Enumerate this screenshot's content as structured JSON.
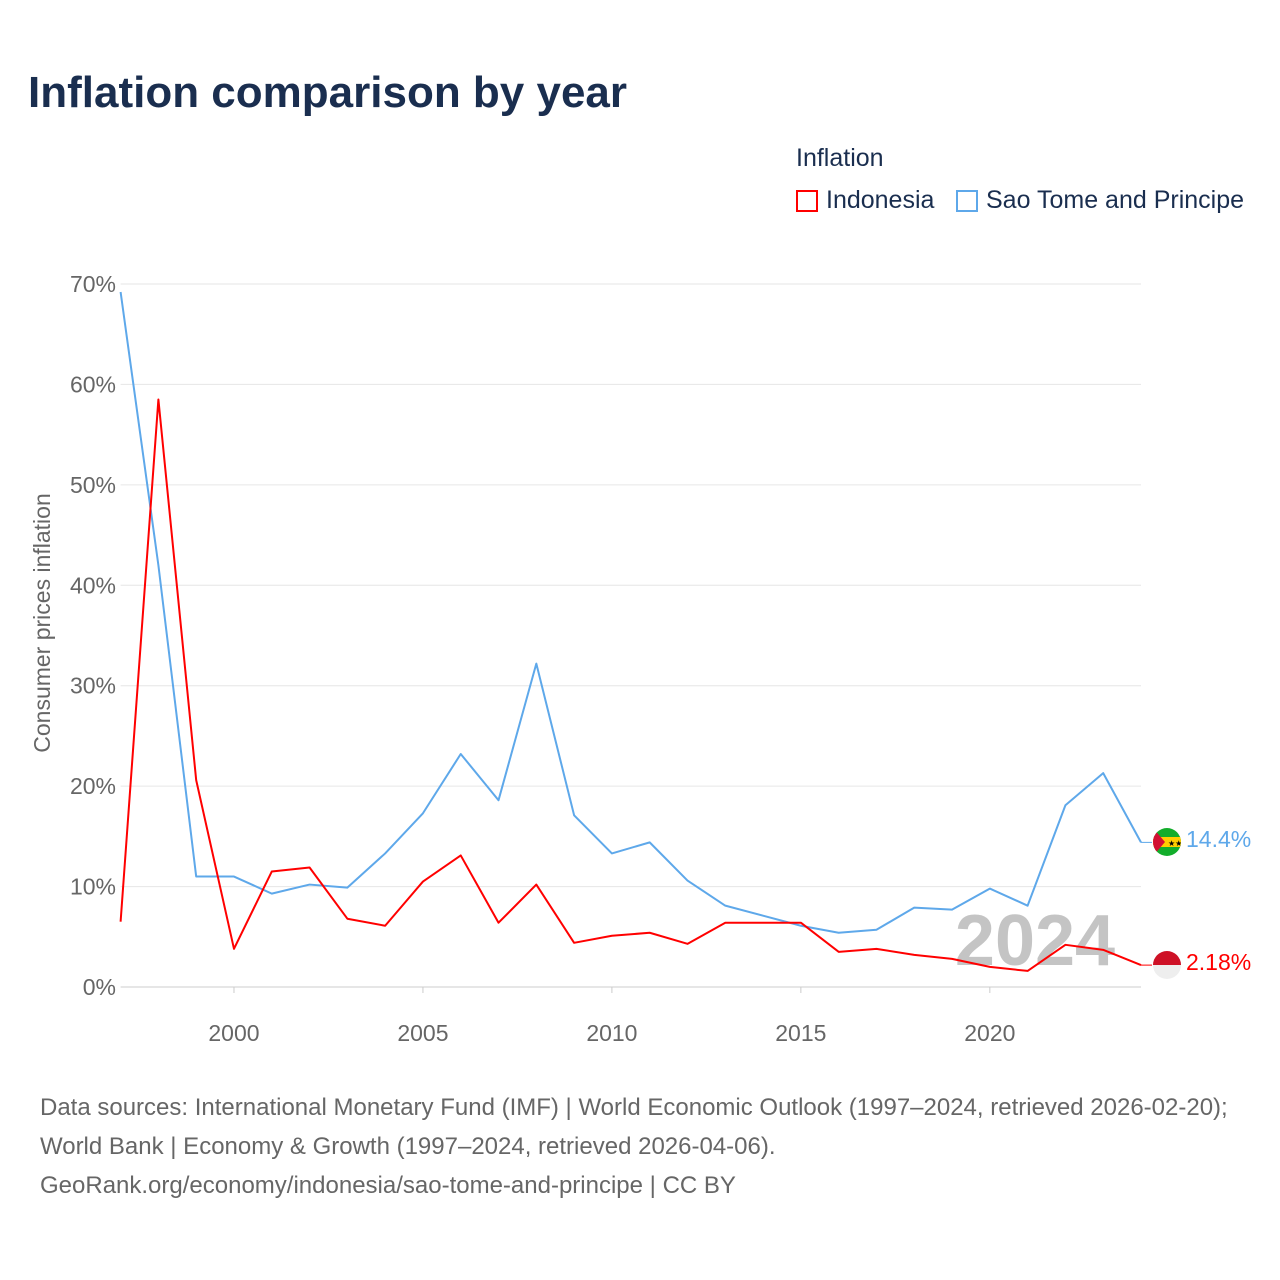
{
  "title": "Inflation comparison by year",
  "legend": {
    "title": "Inflation",
    "items": [
      {
        "name": "Indonesia",
        "color": "#ff0000"
      },
      {
        "name": "Sao Tome and Principe",
        "color": "#5ea8ea"
      }
    ]
  },
  "watermark_year": "2024",
  "sources": "Data sources: International Monetary Fund (IMF) | World Economic Outlook (1997–2024, retrieved 2026-02-20); World Bank | Economy & Growth (1997–2024, retrieved 2026-04-06).",
  "footer_link": "GeoRank.org/economy/indonesia/sao-tome-and-principe | CC BY",
  "chart_data": {
    "type": "line",
    "title": "Inflation comparison by year",
    "xlabel": "",
    "ylabel": "Consumer prices inflation",
    "xlim": [
      1997,
      2024
    ],
    "ylim": [
      0,
      70
    ],
    "yticks": [
      0,
      10,
      20,
      30,
      40,
      50,
      60,
      70
    ],
    "ytick_labels": [
      "0%",
      "10%",
      "20%",
      "30%",
      "40%",
      "50%",
      "60%",
      "70%"
    ],
    "xticks": [
      2000,
      2005,
      2010,
      2015,
      2020
    ],
    "xtick_labels": [
      "2000",
      "2005",
      "2010",
      "2015",
      "2020"
    ],
    "grid": true,
    "legend_position": "top-right",
    "x": [
      1997,
      1998,
      1999,
      2000,
      2001,
      2002,
      2003,
      2004,
      2005,
      2006,
      2007,
      2008,
      2009,
      2010,
      2011,
      2012,
      2013,
      2014,
      2015,
      2016,
      2017,
      2018,
      2019,
      2020,
      2021,
      2022,
      2023,
      2024
    ],
    "series": [
      {
        "name": "Indonesia",
        "color": "#ff0000",
        "end_label": "2.18%",
        "values": [
          6.5,
          58.5,
          20.6,
          3.8,
          11.5,
          11.9,
          6.8,
          6.1,
          10.5,
          13.1,
          6.4,
          10.2,
          4.4,
          5.1,
          5.4,
          4.3,
          6.4,
          6.4,
          6.4,
          3.5,
          3.8,
          3.2,
          2.8,
          2.0,
          1.6,
          4.2,
          3.7,
          2.18
        ]
      },
      {
        "name": "Sao Tome and Principe",
        "color": "#5ea8ea",
        "end_label": "14.4%",
        "values": [
          69.2,
          42.0,
          11.0,
          11.0,
          9.3,
          10.2,
          9.9,
          13.3,
          17.3,
          23.2,
          18.6,
          32.2,
          17.1,
          13.3,
          14.4,
          10.6,
          8.1,
          7.1,
          6.1,
          5.4,
          5.7,
          7.9,
          7.7,
          9.8,
          8.1,
          18.1,
          21.3,
          14.4
        ]
      }
    ]
  }
}
